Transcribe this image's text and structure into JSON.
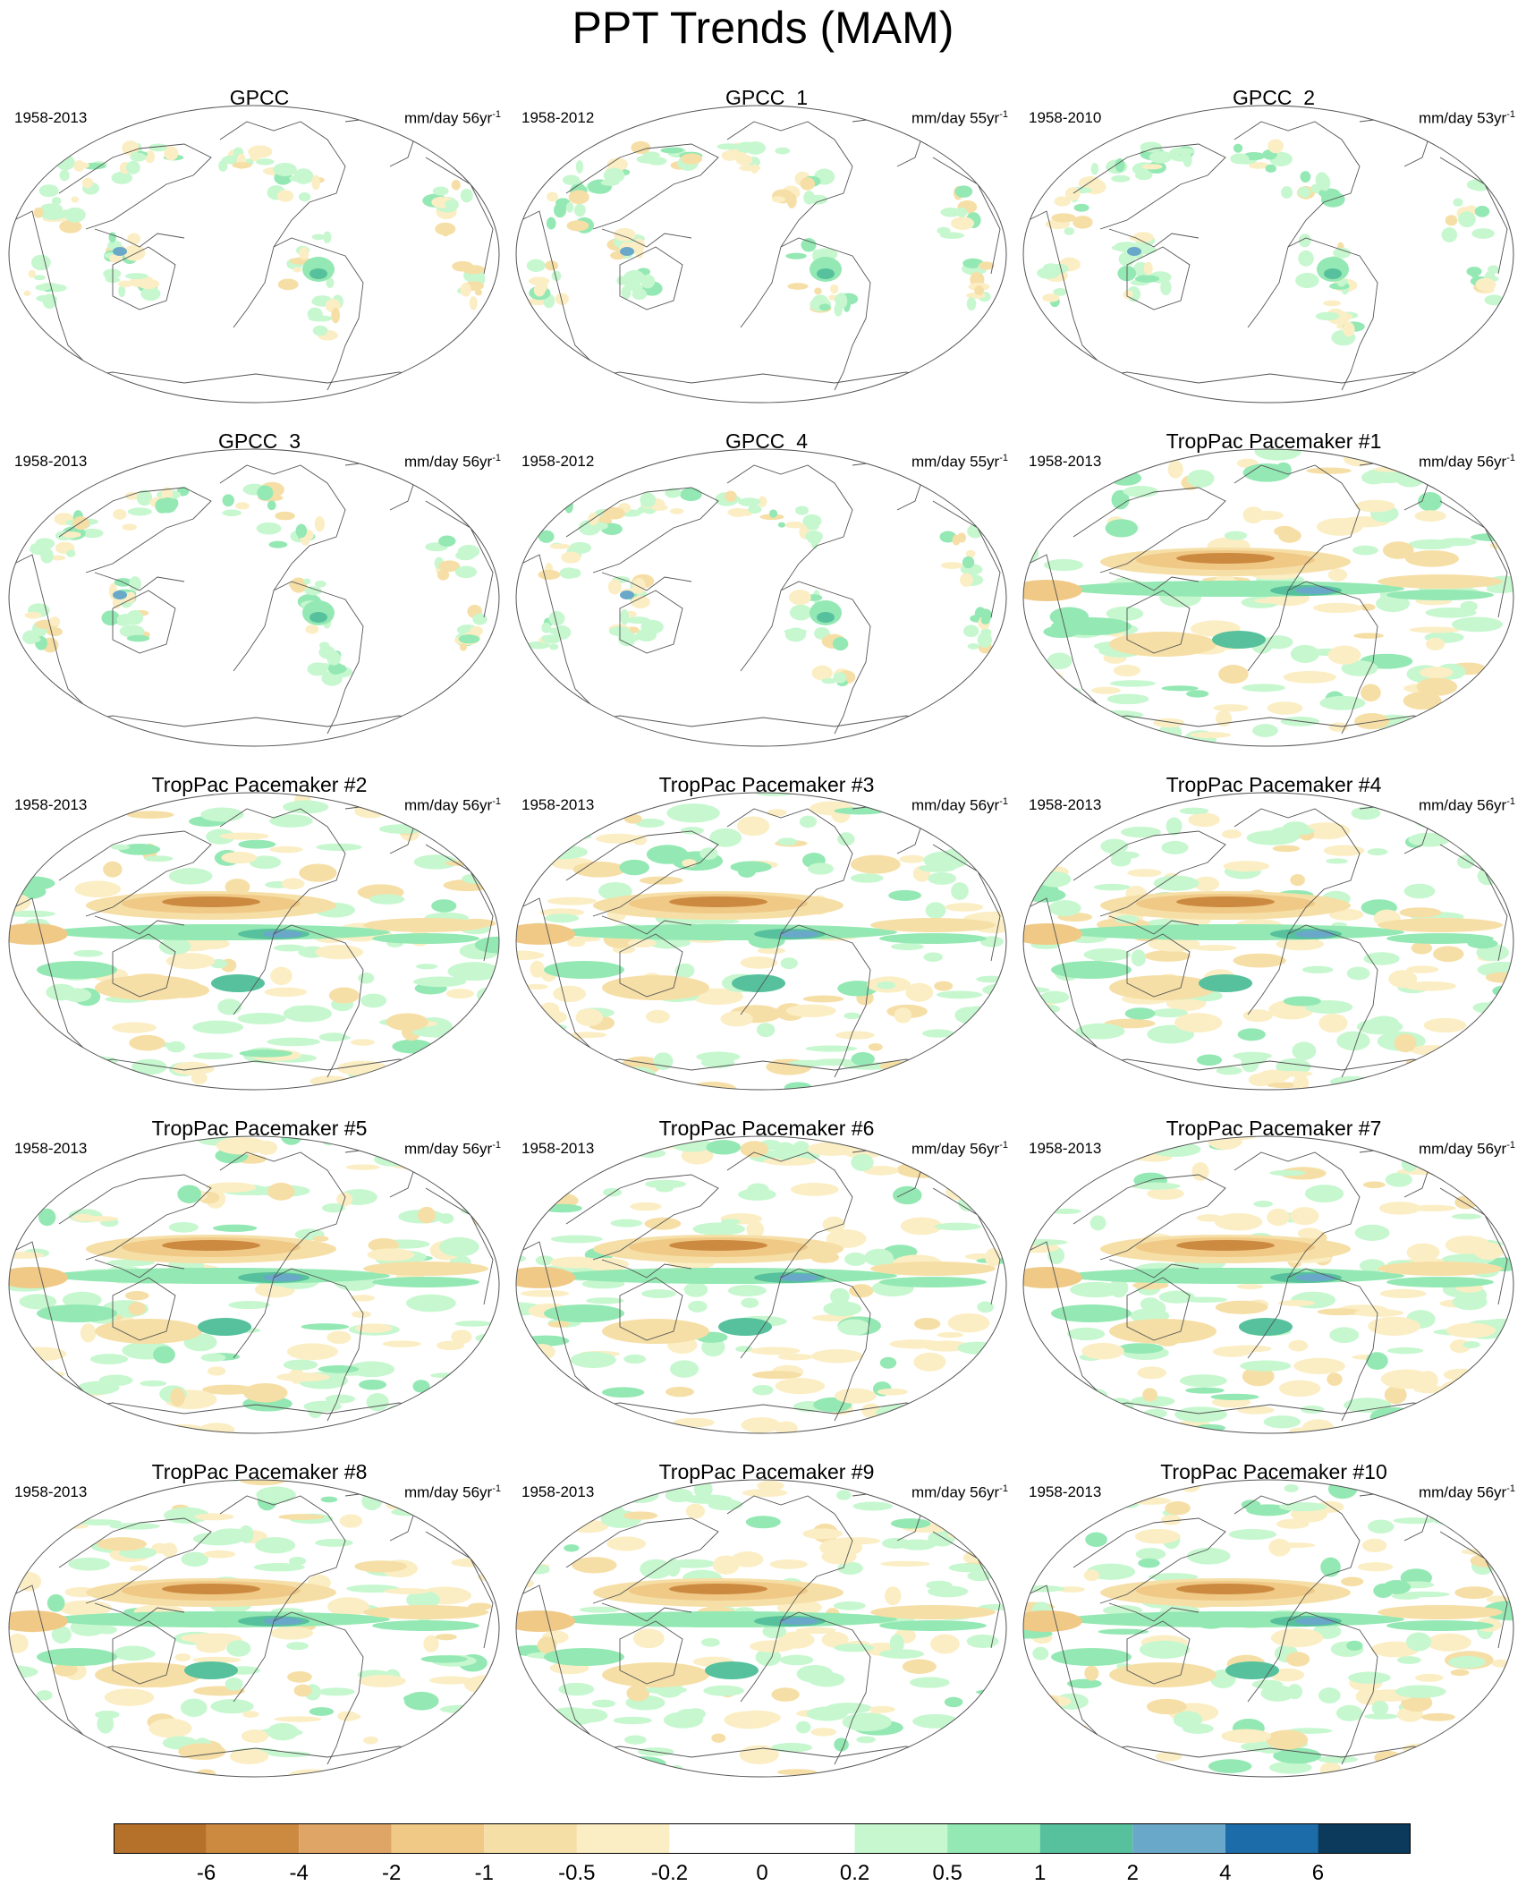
{
  "title": "PPT Trends (MAM)",
  "panels": [
    {
      "title": "GPCC",
      "period": "1958-2013",
      "units": "mm/day 56yr",
      "units_exp": "-1",
      "kind": "obs"
    },
    {
      "title": "GPCC_1",
      "period": "1958-2012",
      "units": "mm/day 55yr",
      "units_exp": "-1",
      "kind": "obs"
    },
    {
      "title": "GPCC_2",
      "period": "1958-2010",
      "units": "mm/day 53yr",
      "units_exp": "-1",
      "kind": "obs"
    },
    {
      "title": "GPCC_3",
      "period": "1958-2013",
      "units": "mm/day 56yr",
      "units_exp": "-1",
      "kind": "obs"
    },
    {
      "title": "GPCC_4",
      "period": "1958-2012",
      "units": "mm/day 55yr",
      "units_exp": "-1",
      "kind": "obs"
    },
    {
      "title": "TropPac Pacemaker #1",
      "period": "1958-2013",
      "units": "mm/day 56yr",
      "units_exp": "-1",
      "kind": "model"
    },
    {
      "title": "TropPac Pacemaker #2",
      "period": "1958-2013",
      "units": "mm/day 56yr",
      "units_exp": "-1",
      "kind": "model"
    },
    {
      "title": "TropPac Pacemaker #3",
      "period": "1958-2013",
      "units": "mm/day 56yr",
      "units_exp": "-1",
      "kind": "model"
    },
    {
      "title": "TropPac Pacemaker #4",
      "period": "1958-2013",
      "units": "mm/day 56yr",
      "units_exp": "-1",
      "kind": "model"
    },
    {
      "title": "TropPac Pacemaker #5",
      "period": "1958-2013",
      "units": "mm/day 56yr",
      "units_exp": "-1",
      "kind": "model"
    },
    {
      "title": "TropPac Pacemaker #6",
      "period": "1958-2013",
      "units": "mm/day 56yr",
      "units_exp": "-1",
      "kind": "model"
    },
    {
      "title": "TropPac Pacemaker #7",
      "period": "1958-2013",
      "units": "mm/day 56yr",
      "units_exp": "-1",
      "kind": "model"
    },
    {
      "title": "TropPac Pacemaker #8",
      "period": "1958-2013",
      "units": "mm/day 56yr",
      "units_exp": "-1",
      "kind": "model"
    },
    {
      "title": "TropPac Pacemaker #9",
      "period": "1958-2013",
      "units": "mm/day 56yr",
      "units_exp": "-1",
      "kind": "model"
    },
    {
      "title": "TropPac Pacemaker #10",
      "period": "1958-2013",
      "units": "mm/day 56yr",
      "units_exp": "-1",
      "kind": "model"
    }
  ],
  "colorbar": {
    "labels": [
      "-6",
      "-4",
      "-2",
      "-1",
      "-0.5",
      "-0.2",
      "0",
      "0.2",
      "0.5",
      "1",
      "2",
      "4",
      "6"
    ],
    "colors": [
      "#b5702a",
      "#cc8a40",
      "#dea566",
      "#f0c987",
      "#f6dfa6",
      "#fbeec4",
      "#ffffff",
      "#ffffff",
      "#c6f7cf",
      "#94e8b3",
      "#56c19c",
      "#6aa8c9",
      "#1b6ca8",
      "#0b3a5c"
    ]
  }
}
